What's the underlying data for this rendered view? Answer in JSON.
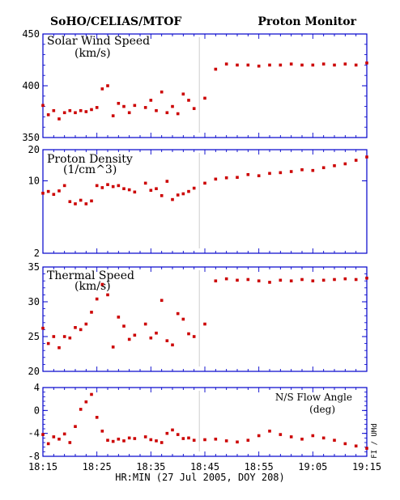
{
  "header": {
    "left_title": "SoHO/CELIAS/MTOF",
    "right_title": "Proton Monitor"
  },
  "xlabel": "HR:MIN (27 Jul 2005, DOY 208)",
  "credit": "FI / UMd",
  "colors": {
    "points": "#cc0000",
    "frame": "#0000cc",
    "gap_line": "#cccccc"
  },
  "chart_data": [
    {
      "type": "scatter",
      "title": "Solar Wind Speed",
      "unit": "(km/s)",
      "ylim": [
        350,
        450
      ],
      "yticks": [
        "450",
        "400",
        "350"
      ],
      "xticks": [
        "18:15",
        "18:25",
        "18:35",
        "18:45",
        "18:55",
        "19:05",
        "19:15"
      ],
      "x": [
        18.25,
        18.2667,
        18.2833,
        18.3,
        18.3167,
        18.3333,
        18.35,
        18.3667,
        18.3833,
        18.4,
        18.4167,
        18.4333,
        18.45,
        18.4667,
        18.4833,
        18.5,
        18.5167,
        18.5333,
        18.5667,
        18.5833,
        18.6,
        18.6167,
        18.6333,
        18.65,
        18.6667,
        18.6833,
        18.7,
        18.7167,
        18.75,
        18.7833,
        18.8167,
        18.85,
        18.8833,
        18.9167,
        18.95,
        18.9833,
        19.0167,
        19.05,
        19.0833,
        19.1167,
        19.15,
        19.1833,
        19.2167,
        19.25
      ],
      "y": [
        381,
        372,
        376,
        368,
        374,
        376,
        374,
        376,
        375,
        377,
        379,
        397,
        400,
        371,
        383,
        380,
        374,
        381,
        379,
        386,
        376,
        394,
        374,
        380,
        373,
        392,
        386,
        378,
        388,
        416,
        421,
        420,
        420,
        419,
        420,
        420,
        421,
        420,
        420,
        421,
        420,
        421,
        420,
        422
      ]
    },
    {
      "type": "scatter",
      "title": "Proton Density",
      "unit": "(1/cm^3)",
      "yscale": "log",
      "ylim": [
        2,
        20
      ],
      "yticks": [
        "20",
        "10",
        "2"
      ],
      "xticks": [
        "18:15",
        "18:25",
        "18:35",
        "18:45",
        "18:55",
        "19:05",
        "19:15"
      ],
      "x": [
        18.25,
        18.2667,
        18.2833,
        18.3,
        18.3167,
        18.3333,
        18.35,
        18.3667,
        18.3833,
        18.4,
        18.4167,
        18.4333,
        18.45,
        18.4667,
        18.4833,
        18.5,
        18.5167,
        18.5333,
        18.5667,
        18.5833,
        18.6,
        18.6167,
        18.6333,
        18.65,
        18.6667,
        18.6833,
        18.7,
        18.7167,
        18.75,
        18.7833,
        18.8167,
        18.85,
        18.8833,
        18.9167,
        18.95,
        18.9833,
        19.0167,
        19.05,
        19.0833,
        19.1167,
        19.15,
        19.1833,
        19.2167,
        19.25
      ],
      "y": [
        7.6,
        7.9,
        7.4,
        8.0,
        9.0,
        6.3,
        6.0,
        6.5,
        6.0,
        6.4,
        9.0,
        8.6,
        9.2,
        8.8,
        9.0,
        8.4,
        8.2,
        7.8,
        9.5,
        8.1,
        8.4,
        7.2,
        9.9,
        6.6,
        7.3,
        7.5,
        7.9,
        8.5,
        9.5,
        10.4,
        10.7,
        10.8,
        11.5,
        11.2,
        11.8,
        12.0,
        12.3,
        12.8,
        12.6,
        13.4,
        14.0,
        14.6,
        15.8,
        17.0
      ]
    },
    {
      "type": "scatter",
      "title": "Thermal Speed",
      "unit": "(km/s)",
      "ylim": [
        20,
        35
      ],
      "yticks": [
        "35",
        "30",
        "25",
        "20"
      ],
      "xticks": [
        "18:15",
        "18:25",
        "18:35",
        "18:45",
        "18:55",
        "19:05",
        "19:15"
      ],
      "x": [
        18.25,
        18.2667,
        18.2833,
        18.3,
        18.3167,
        18.3333,
        18.35,
        18.3667,
        18.3833,
        18.4,
        18.4167,
        18.4333,
        18.45,
        18.4667,
        18.4833,
        18.5,
        18.5167,
        18.5333,
        18.5667,
        18.5833,
        18.6,
        18.6167,
        18.6333,
        18.65,
        18.6667,
        18.6833,
        18.7,
        18.7167,
        18.75,
        18.7833,
        18.8167,
        18.85,
        18.8833,
        18.9167,
        18.95,
        18.9833,
        19.0167,
        19.05,
        19.0833,
        19.1167,
        19.15,
        19.1833,
        19.2167,
        19.25
      ],
      "y": [
        26.2,
        24.0,
        25.0,
        23.4,
        25.0,
        24.8,
        26.3,
        26.0,
        26.8,
        28.5,
        30.4,
        32.5,
        31.0,
        23.5,
        27.8,
        26.5,
        24.6,
        25.2,
        26.8,
        24.8,
        25.5,
        30.2,
        24.4,
        23.8,
        28.3,
        27.5,
        25.4,
        25.0,
        26.8,
        33.0,
        33.3,
        33.1,
        33.2,
        33.0,
        32.8,
        33.1,
        33.0,
        33.2,
        33.0,
        33.1,
        33.2,
        33.3,
        33.2,
        33.4
      ]
    },
    {
      "type": "scatter",
      "title": "N/S Flow Angle",
      "unit": "(deg)",
      "ylim": [
        -8,
        4
      ],
      "yticks": [
        "4",
        "0",
        "-4",
        "-8"
      ],
      "xticks": [
        "18:15",
        "18:25",
        "18:35",
        "18:45",
        "18:55",
        "19:05",
        "19:15"
      ],
      "x": [
        18.25,
        18.2667,
        18.2833,
        18.3,
        18.3167,
        18.3333,
        18.35,
        18.3667,
        18.3833,
        18.4,
        18.4167,
        18.4333,
        18.45,
        18.4667,
        18.4833,
        18.5,
        18.5167,
        18.5333,
        18.5667,
        18.5833,
        18.6,
        18.6167,
        18.6333,
        18.65,
        18.6667,
        18.6833,
        18.7,
        18.7167,
        18.75,
        18.7833,
        18.8167,
        18.85,
        18.8833,
        18.9167,
        18.95,
        18.9833,
        19.0167,
        19.05,
        19.0833,
        19.1167,
        19.15,
        19.1833,
        19.2167,
        19.25
      ],
      "y": [
        -4.2,
        -5.8,
        -4.6,
        -5.0,
        -4.1,
        -5.6,
        -2.8,
        0.2,
        1.5,
        2.8,
        -1.2,
        -3.6,
        -5.2,
        -5.4,
        -5.0,
        -5.3,
        -4.8,
        -4.9,
        -4.6,
        -5.1,
        -5.3,
        -5.6,
        -4.0,
        -3.4,
        -4.2,
        -4.9,
        -4.8,
        -5.2,
        -5.1,
        -5.0,
        -5.3,
        -5.5,
        -5.2,
        -4.4,
        -3.6,
        -4.2,
        -4.6,
        -5.0,
        -4.4,
        -4.8,
        -5.2,
        -5.8,
        -6.2,
        -6.6
      ]
    }
  ]
}
